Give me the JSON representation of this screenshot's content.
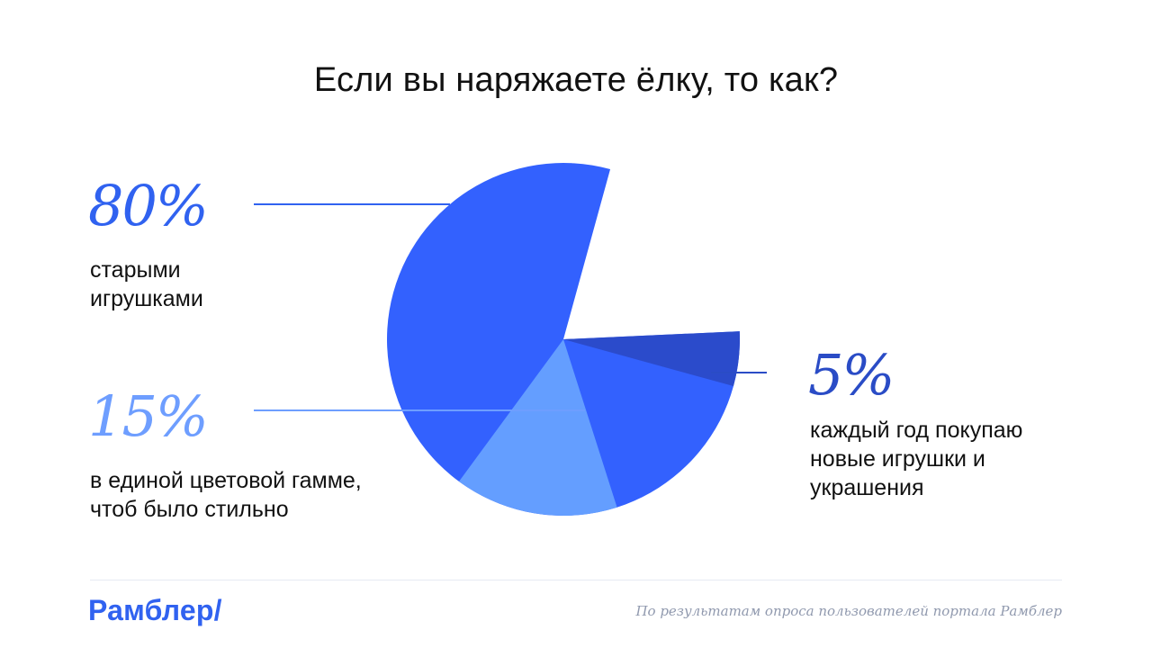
{
  "title": "Если вы наряжаете ёлку, то как?",
  "chart_data": {
    "type": "pie",
    "title": "Если вы наряжаете ёлку, то как?",
    "slices": [
      {
        "label": "старыми\nигрушками",
        "value": 80,
        "display": "80%",
        "color": "#3361FE"
      },
      {
        "label": "в единой цветовой гамме,\nчтоб было стильно",
        "value": 15,
        "display": "15%",
        "color": "#649EFF"
      },
      {
        "label": "каждый год покупаю\nновые игрушки и\nукрашения",
        "value": 5,
        "display": "5%",
        "color": "#2B4BCB"
      }
    ]
  },
  "footer": {
    "logo": "Рамблер/",
    "source": "По результатам опроса пользователей портала Рамблер"
  }
}
